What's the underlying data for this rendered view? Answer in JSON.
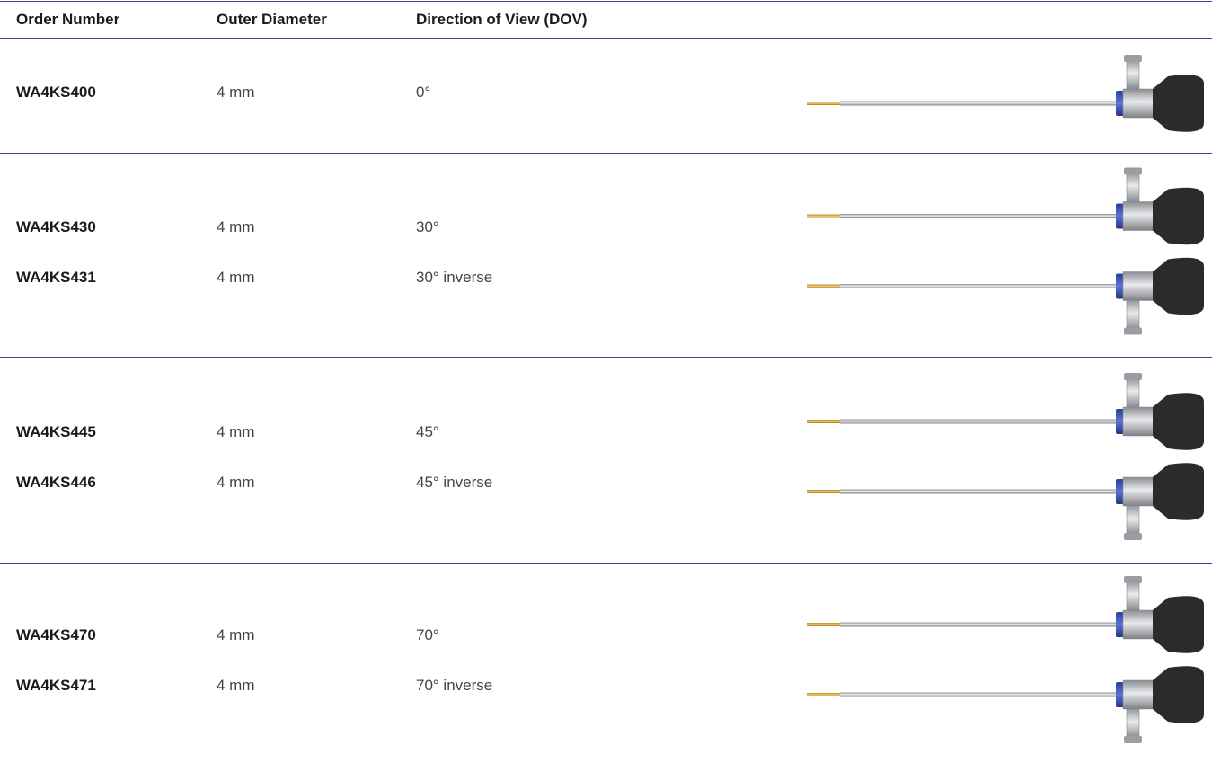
{
  "table": {
    "header": [
      "Order Number",
      "Outer Diameter",
      "Direction of View (DOV)"
    ],
    "groups": [
      [
        [
          "WA4KS400",
          "4 mm",
          "0°"
        ]
      ],
      [
        [
          "WA4KS430",
          "4 mm",
          "30°"
        ],
        [
          "WA4KS431",
          "4 mm",
          "30° inverse"
        ]
      ],
      [
        [
          "WA4KS445",
          "4 mm",
          "45°"
        ],
        [
          "WA4KS446",
          "4 mm",
          "45° inverse"
        ]
      ],
      [
        [
          "WA4KS470",
          "4 mm",
          "70°"
        ],
        [
          "WA4KS471",
          "4 mm",
          "70° inverse"
        ]
      ]
    ]
  }
}
